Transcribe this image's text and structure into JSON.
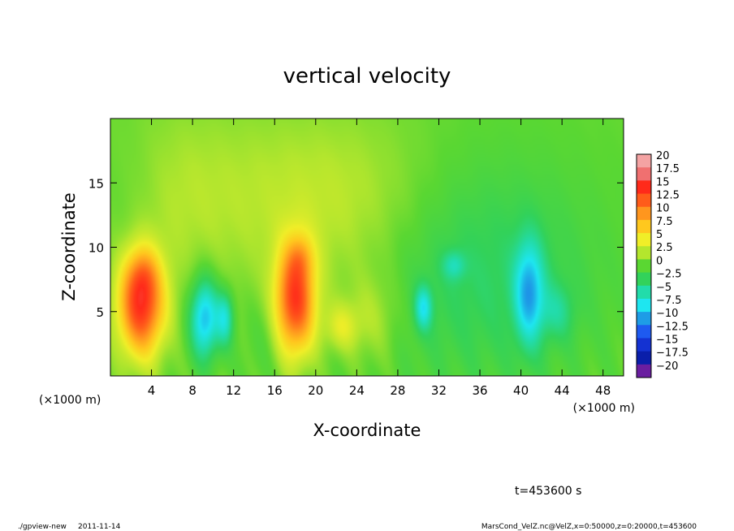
{
  "chart_data": {
    "type": "heatmap",
    "title": "vertical velocity",
    "xlabel": "X-coordinate",
    "ylabel": "Z-coordinate",
    "x_unit_left": "(×1000 m)",
    "x_unit_right": "(×1000 m)",
    "xlim": [
      0,
      50
    ],
    "ylim": [
      0,
      20
    ],
    "x_ticks": [
      4,
      8,
      12,
      16,
      20,
      24,
      28,
      32,
      36,
      40,
      44,
      48
    ],
    "y_ticks": [
      5,
      10,
      15
    ],
    "colorbar": {
      "labels": [
        "20",
        "17.5",
        "15",
        "12.5",
        "10",
        "7.5",
        "5",
        "2.5",
        "0",
        "−2.5",
        "−5",
        "−7.5",
        "−10",
        "−12.5",
        "−15",
        "−17.5",
        "−20"
      ],
      "values": [
        20,
        17.5,
        15,
        12.5,
        10,
        7.5,
        5,
        2.5,
        0,
        -2.5,
        -5,
        -7.5,
        -10,
        -12.5,
        -15,
        -17.5,
        -20
      ],
      "colors": [
        "#f4a3a3",
        "#f07070",
        "#ff2a1a",
        "#ff5c1a",
        "#ff961e",
        "#ffc81e",
        "#f0ee28",
        "#b4e62d",
        "#5ad732",
        "#32d25a",
        "#22dcaa",
        "#1ee6f0",
        "#1e9ce6",
        "#1e5af0",
        "#1432d2",
        "#0a1eaa",
        "#6a1ea0"
      ]
    },
    "field_blobs": [
      {
        "x": 3.0,
        "z": 5.5,
        "sx": 1.6,
        "sz": 2.8,
        "w": 14
      },
      {
        "x": 3.2,
        "z": 8.0,
        "sx": 1.0,
        "sz": 1.4,
        "w": 3
      },
      {
        "x": 18.0,
        "z": 5.8,
        "sx": 1.4,
        "sz": 3.0,
        "w": 13.5
      },
      {
        "x": 18.5,
        "z": 9.2,
        "sx": 0.9,
        "sz": 1.2,
        "w": 3
      },
      {
        "x": 9.2,
        "z": 4.5,
        "sx": 1.0,
        "sz": 2.2,
        "w": -9.5
      },
      {
        "x": 11.2,
        "z": 4.5,
        "sx": 0.6,
        "sz": 1.5,
        "w": -6
      },
      {
        "x": 30.5,
        "z": 5.3,
        "sx": 0.6,
        "sz": 1.2,
        "w": -6
      },
      {
        "x": 33.5,
        "z": 8.6,
        "sx": 0.8,
        "sz": 0.8,
        "w": -3.5
      },
      {
        "x": 40.8,
        "z": 6.5,
        "sx": 1.0,
        "sz": 2.8,
        "w": -8
      },
      {
        "x": 36.0,
        "z": 8.0,
        "sx": 8.0,
        "sz": 6.0,
        "w": -3.2
      },
      {
        "x": 43.5,
        "z": 5.0,
        "sx": 1.2,
        "sz": 1.5,
        "w": -3
      },
      {
        "x": 22.5,
        "z": 3.8,
        "sx": 1.2,
        "sz": 1.3,
        "w": 3.5
      },
      {
        "x": 25.5,
        "z": 4.5,
        "sx": 2.0,
        "sz": 2.5,
        "w": 2.5
      },
      {
        "x": 14.0,
        "z": 14.0,
        "sx": 8.0,
        "sz": 5.0,
        "w": 1.8
      },
      {
        "x": 24.0,
        "z": 13.0,
        "sx": 6.0,
        "sz": 5.0,
        "w": 2.0
      },
      {
        "x": 5.5,
        "z": 14.0,
        "sx": 4.0,
        "sz": 5.0,
        "w": 1.2
      },
      {
        "x": 2.0,
        "z": 14.0,
        "sx": 2.5,
        "sz": 4.0,
        "w": -1.0
      },
      {
        "x": 15.0,
        "z": 3.0,
        "sx": 1.5,
        "sz": 2.5,
        "w": -1.0
      }
    ]
  },
  "footer": {
    "time_label": "t=453600 s",
    "program": "./gpview-new",
    "date": "2011-11-14",
    "source": "MarsCond_VelZ.nc@VelZ,x=0:50000,z=0:20000,t=453600"
  }
}
